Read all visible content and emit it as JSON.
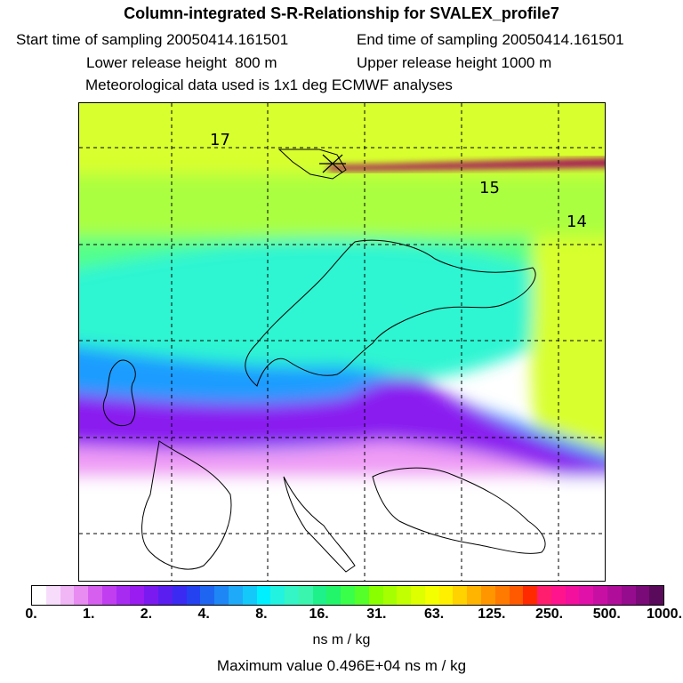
{
  "header": {
    "title": "Column-integrated S-R-Relationship for SVALEX_profile7",
    "start_time": "Start time of sampling 20050414.161501",
    "end_time": "End time of sampling 20050414.161501",
    "lower_release": "Lower release height  800 m",
    "upper_release": "Upper release height 1000 m",
    "met_data": "Meteorological data used is 1x1 deg ECMWF analyses"
  },
  "map": {
    "contour_labels": [
      "17",
      "15",
      "14"
    ],
    "band_colors": {
      "top": "#d8ff2e",
      "upper": "#aaff40",
      "middle": "#55ff88",
      "central": "#2ef5d2",
      "lower": "#1e9cff",
      "bottom": "#8a1cf0",
      "fringe": "#ef9cf5",
      "trajectory": "#a0005a"
    }
  },
  "colorbar": {
    "tick_labels": [
      "0.",
      "1.",
      "2.",
      "4.",
      "8.",
      "16.",
      "31.",
      "63.",
      "125.",
      "250.",
      "500.",
      "1000."
    ],
    "colors": [
      "#ffffff",
      "#f8dcfb",
      "#f0b6f6",
      "#e88cf2",
      "#d65ff0",
      "#c03ef0",
      "#a82bf2",
      "#9a1cf0",
      "#7b1af0",
      "#5a1ef0",
      "#3a2af2",
      "#2442f0",
      "#1e66f2",
      "#1e86f5",
      "#1eaaf8",
      "#14c8fa",
      "#00f0ff",
      "#22f3e0",
      "#33f5c6",
      "#3af5ad",
      "#1ef08a",
      "#22f56a",
      "#3aff4a",
      "#55ff2a",
      "#8aff00",
      "#a6ff00",
      "#c2ff00",
      "#ddff00",
      "#f4ff00",
      "#fff000",
      "#ffd200",
      "#ffb400",
      "#ff9600",
      "#ff7a00",
      "#ff5a00",
      "#ff2a00",
      "#ff1e6e",
      "#ff148e",
      "#f2109c",
      "#e011a8",
      "#c80fa4",
      "#b00e9a",
      "#960c8e",
      "#7a0a78",
      "#5a0a5a"
    ],
    "units": "ns m / kg"
  },
  "footer": {
    "max_value": "Maximum value  0.496E+04 ns m / kg"
  }
}
